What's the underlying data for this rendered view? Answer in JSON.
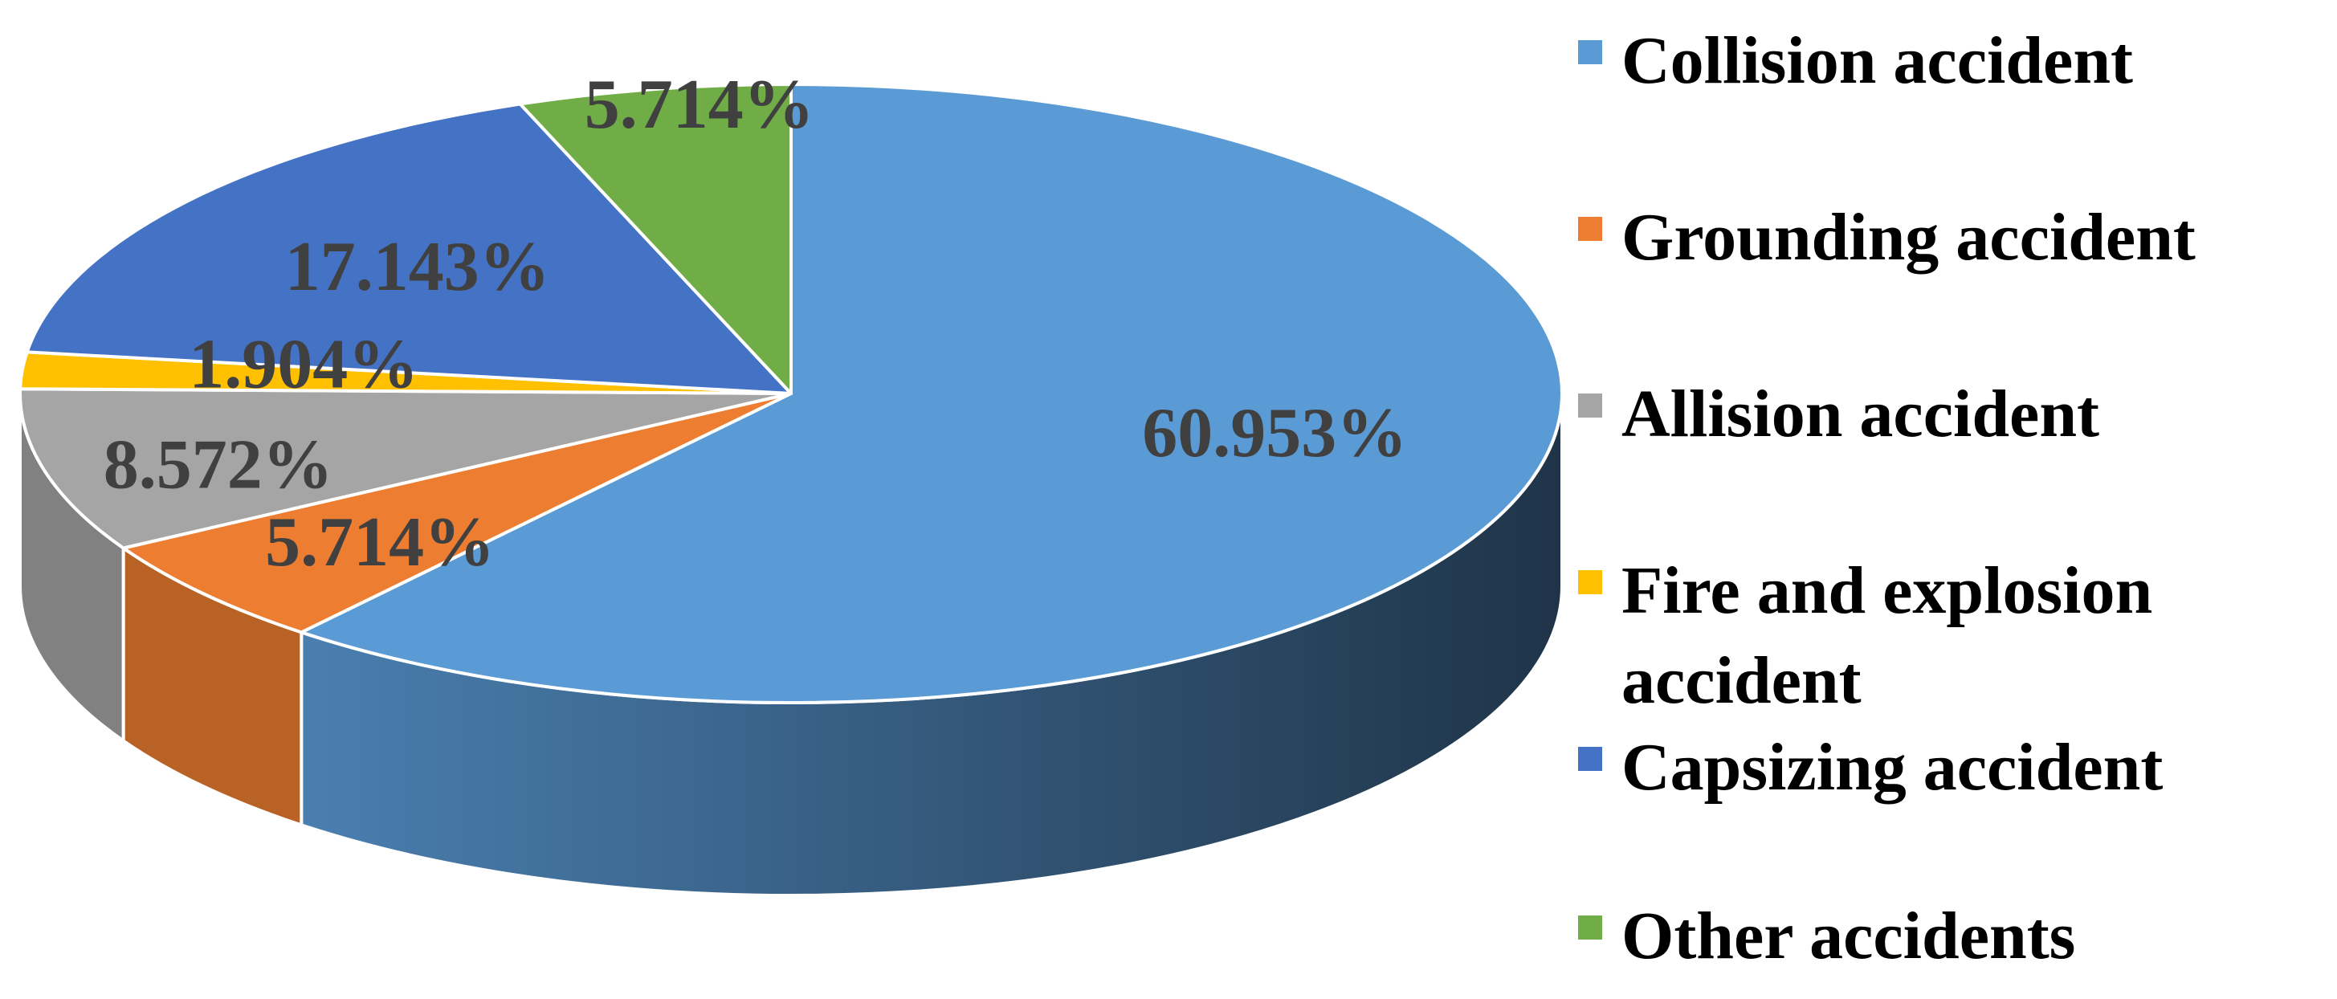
{
  "chart_data": {
    "type": "pie",
    "style": "3d",
    "categories": [
      "Collision accident",
      "Grounding accident",
      "Allision accident",
      "Fire and explosion accident",
      "Capsizing accident",
      "Other accidents"
    ],
    "values": [
      60.953,
      5.714,
      8.572,
      1.904,
      17.143,
      5.714
    ],
    "labels": [
      "60.953%",
      "5.714%",
      "8.572%",
      "1.904%",
      "17.143%",
      "5.714%"
    ],
    "colors": [
      "#5B9BD5",
      "#ED7D31",
      "#A5A5A5",
      "#FFC000",
      "#4472C4",
      "#70AD47"
    ],
    "title": "",
    "legend_position": "right"
  }
}
